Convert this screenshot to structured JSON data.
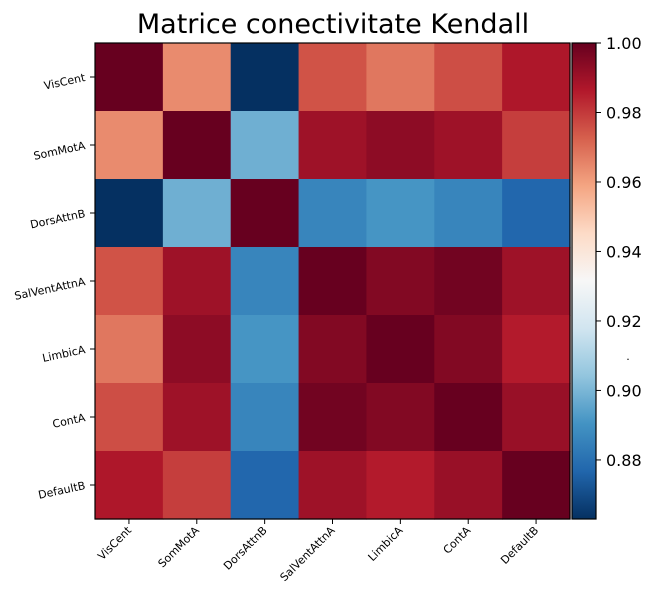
{
  "chart_data": {
    "type": "heatmap",
    "title": "Matrice conectivitate Kendall",
    "row_labels": [
      "VisCent",
      "SomMotA",
      "DorsAttnB",
      "SalVentAttnA",
      "LimbicA",
      "ContA",
      "DefaultB"
    ],
    "col_labels": [
      "VisCent",
      "SomMotA",
      "DorsAttnB",
      "SalVentAttnA",
      "LimbicA",
      "ContA",
      "DefaultB"
    ],
    "values": [
      [
        1.0,
        0.964,
        0.863,
        0.975,
        0.968,
        0.976,
        0.987
      ],
      [
        0.964,
        1.0,
        0.898,
        0.99,
        0.993,
        0.99,
        0.979
      ],
      [
        0.863,
        0.898,
        1.0,
        0.886,
        0.891,
        0.886,
        0.877
      ],
      [
        0.975,
        0.99,
        0.886,
        1.0,
        0.995,
        0.998,
        0.99
      ],
      [
        0.968,
        0.993,
        0.891,
        0.995,
        1.0,
        0.995,
        0.986
      ],
      [
        0.976,
        0.99,
        0.886,
        0.998,
        0.995,
        1.0,
        0.991
      ],
      [
        0.987,
        0.979,
        0.877,
        0.99,
        0.986,
        0.991,
        1.0
      ]
    ],
    "colormap": "RdBu_r",
    "vmin": 0.863,
    "vmax": 1.0,
    "colorbar": {
      "ticks": [
        0.88,
        0.9,
        0.92,
        0.94,
        0.96,
        0.98,
        1.0
      ],
      "tick_labels": [
        "0.88",
        "0.90",
        "0.92",
        "0.94",
        "0.96",
        "0.98",
        "1.00"
      ],
      "side_label": "."
    }
  }
}
